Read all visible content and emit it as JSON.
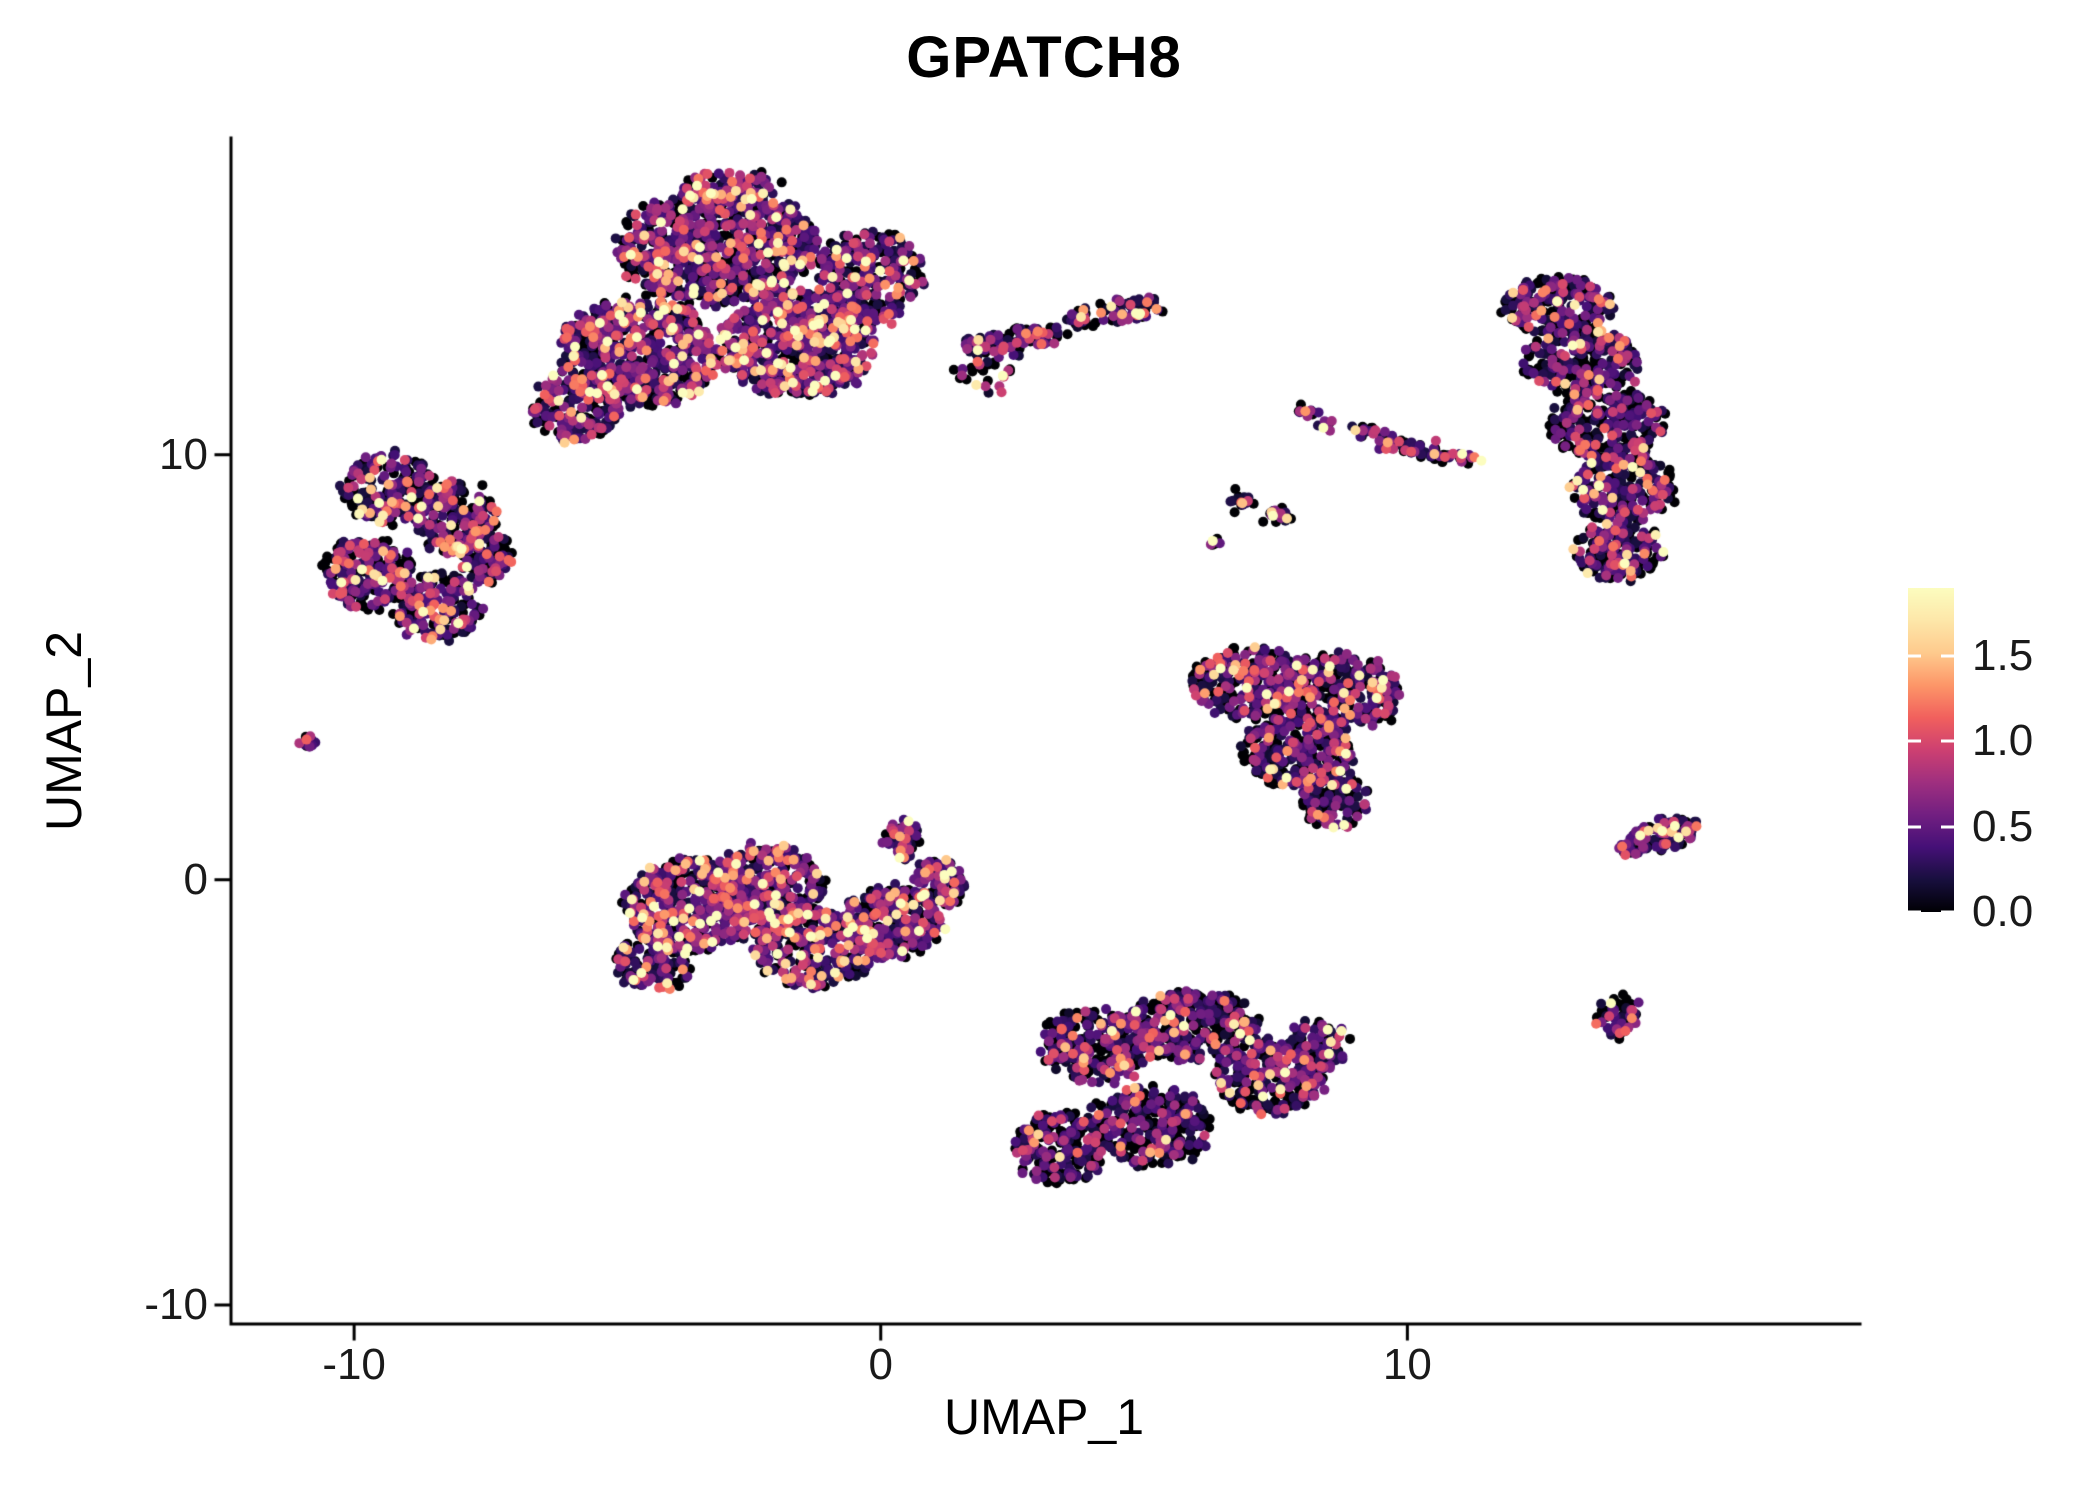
{
  "chart_data": {
    "type": "scatter",
    "title": "GPATCH8",
    "xlabel": "UMAP_1",
    "ylabel": "UMAP_2",
    "xlim": [
      -12.3,
      18.5
    ],
    "ylim": [
      -10.4,
      17.4
    ],
    "xticks": {
      "values": [
        -10,
        0,
        10
      ],
      "labels": [
        "-10",
        "0",
        "10"
      ]
    },
    "yticks": {
      "values": [
        -10,
        0,
        10
      ],
      "labels": [
        "-10",
        "0",
        "10"
      ]
    },
    "grid": false,
    "legend_position": "right",
    "point_radius_px": 5,
    "seed": 1337,
    "colorbar": {
      "limits": [
        0,
        1.9
      ],
      "ticks": [
        0.0,
        0.5,
        1.0,
        1.5
      ],
      "tick_labels": [
        "0.0",
        "0.5",
        "1.0",
        "1.5"
      ],
      "colormap": "magma",
      "stops": [
        {
          "t": 0.0,
          "color": "#000004"
        },
        {
          "t": 0.1,
          "color": "#180f3e"
        },
        {
          "t": 0.2,
          "color": "#451077"
        },
        {
          "t": 0.3,
          "color": "#721f81"
        },
        {
          "t": 0.4,
          "color": "#9f2f7f"
        },
        {
          "t": 0.5,
          "color": "#cd4071"
        },
        {
          "t": 0.6,
          "color": "#f1605d"
        },
        {
          "t": 0.7,
          "color": "#fd9668"
        },
        {
          "t": 0.8,
          "color": "#feca8d"
        },
        {
          "t": 0.9,
          "color": "#fde7a9"
        },
        {
          "t": 1.0,
          "color": "#fcfdbf"
        }
      ]
    },
    "clusters": [
      {
        "x": -3.1,
        "y": 14.9,
        "rx": 1.9,
        "ry": 1.35,
        "n": 820,
        "z": 0.26,
        "s": 0.5
      },
      {
        "x": -2.8,
        "y": 16.2,
        "rx": 1.0,
        "ry": 0.5,
        "n": 100,
        "z": 0.26,
        "s": 0.5
      },
      {
        "x": -4.6,
        "y": 12.4,
        "rx": 1.5,
        "ry": 1.3,
        "n": 650,
        "z": 0.26,
        "s": 0.5
      },
      {
        "x": -1.6,
        "y": 12.6,
        "rx": 1.5,
        "ry": 1.25,
        "n": 650,
        "z": 0.26,
        "s": 0.52
      },
      {
        "x": -0.2,
        "y": 14.2,
        "rx": 1.05,
        "ry": 1.05,
        "n": 300,
        "z": 0.26,
        "s": 0.5
      },
      {
        "x": -5.8,
        "y": 11.1,
        "rx": 0.85,
        "ry": 0.8,
        "n": 180,
        "z": 0.3,
        "s": 0.48
      },
      {
        "x": 2.6,
        "y": 12.7,
        "rx": 1.05,
        "ry": 0.28,
        "n": 90,
        "a": 10,
        "z": 0.3,
        "s": 0.5
      },
      {
        "x": 4.5,
        "y": 13.35,
        "rx": 0.95,
        "ry": 0.25,
        "n": 85,
        "a": 12,
        "z": 0.3,
        "s": 0.5
      },
      {
        "x": 2.0,
        "y": 11.9,
        "rx": 0.55,
        "ry": 0.5,
        "n": 28,
        "z": 0.3,
        "s": 0.45
      },
      {
        "x": -9.3,
        "y": 9.2,
        "rx": 0.9,
        "ry": 0.85,
        "n": 230,
        "z": 0.34,
        "s": 0.48
      },
      {
        "x": -8.1,
        "y": 8.5,
        "rx": 0.78,
        "ry": 0.82,
        "n": 200,
        "z": 0.34,
        "s": 0.48
      },
      {
        "x": -9.7,
        "y": 7.2,
        "rx": 0.88,
        "ry": 0.82,
        "n": 220,
        "z": 0.34,
        "s": 0.48
      },
      {
        "x": -8.4,
        "y": 6.4,
        "rx": 0.82,
        "ry": 0.76,
        "n": 200,
        "z": 0.34,
        "s": 0.48
      },
      {
        "x": -7.5,
        "y": 7.6,
        "rx": 0.5,
        "ry": 0.62,
        "n": 100,
        "z": 0.34,
        "s": 0.48
      },
      {
        "x": -10.9,
        "y": 3.2,
        "rx": 0.17,
        "ry": 0.15,
        "n": 12,
        "z": 0.3,
        "s": 0.5
      },
      {
        "x": -3.6,
        "y": -0.6,
        "rx": 1.25,
        "ry": 1.1,
        "n": 450,
        "z": 0.3,
        "s": 0.52
      },
      {
        "x": -2.2,
        "y": -0.2,
        "rx": 1.1,
        "ry": 1.0,
        "n": 400,
        "z": 0.3,
        "s": 0.52
      },
      {
        "x": -1.2,
        "y": -1.6,
        "rx": 1.2,
        "ry": 0.9,
        "n": 350,
        "z": 0.3,
        "s": 0.52
      },
      {
        "x": 0.2,
        "y": -1.0,
        "rx": 1.0,
        "ry": 0.8,
        "n": 250,
        "z": 0.32,
        "s": 0.5
      },
      {
        "x": 1.1,
        "y": -0.1,
        "rx": 0.5,
        "ry": 0.6,
        "n": 100,
        "z": 0.32,
        "s": 0.5
      },
      {
        "x": 0.4,
        "y": 0.95,
        "rx": 0.35,
        "ry": 0.45,
        "n": 55,
        "z": 0.32,
        "s": 0.5
      },
      {
        "x": -4.3,
        "y": -1.9,
        "rx": 0.75,
        "ry": 0.7,
        "n": 150,
        "z": 0.3,
        "s": 0.52
      },
      {
        "x": 7.1,
        "y": 4.6,
        "rx": 1.25,
        "ry": 0.85,
        "n": 320,
        "z": 0.4,
        "s": 0.44
      },
      {
        "x": 8.8,
        "y": 4.4,
        "rx": 1.05,
        "ry": 0.9,
        "n": 300,
        "z": 0.4,
        "s": 0.44
      },
      {
        "x": 7.9,
        "y": 3.0,
        "rx": 1.05,
        "ry": 0.85,
        "n": 260,
        "z": 0.4,
        "s": 0.44
      },
      {
        "x": 8.6,
        "y": 1.9,
        "rx": 0.62,
        "ry": 0.7,
        "n": 130,
        "z": 0.4,
        "s": 0.44
      },
      {
        "x": 4.1,
        "y": -3.9,
        "rx": 1.05,
        "ry": 0.85,
        "n": 280,
        "z": 0.44,
        "s": 0.42
      },
      {
        "x": 5.9,
        "y": -3.4,
        "rx": 1.25,
        "ry": 0.8,
        "n": 320,
        "z": 0.4,
        "s": 0.44
      },
      {
        "x": 7.4,
        "y": -4.6,
        "rx": 1.05,
        "ry": 0.9,
        "n": 280,
        "z": 0.4,
        "s": 0.44
      },
      {
        "x": 5.1,
        "y": -5.8,
        "rx": 1.15,
        "ry": 0.9,
        "n": 300,
        "z": 0.46,
        "s": 0.42
      },
      {
        "x": 3.4,
        "y": -6.3,
        "rx": 0.85,
        "ry": 0.85,
        "n": 220,
        "z": 0.5,
        "s": 0.4
      },
      {
        "x": 8.3,
        "y": -3.9,
        "rx": 0.55,
        "ry": 0.6,
        "n": 90,
        "z": 0.4,
        "s": 0.44
      },
      {
        "x": 12.9,
        "y": 13.5,
        "rx": 1.05,
        "ry": 0.7,
        "n": 230,
        "z": 0.45,
        "s": 0.42
      },
      {
        "x": 13.3,
        "y": 12.2,
        "rx": 1.1,
        "ry": 0.75,
        "n": 260,
        "z": 0.45,
        "s": 0.42
      },
      {
        "x": 13.8,
        "y": 10.7,
        "rx": 1.1,
        "ry": 0.8,
        "n": 260,
        "z": 0.45,
        "s": 0.42
      },
      {
        "x": 14.1,
        "y": 9.2,
        "rx": 1.0,
        "ry": 0.8,
        "n": 240,
        "z": 0.45,
        "s": 0.42
      },
      {
        "x": 14.0,
        "y": 7.7,
        "rx": 0.85,
        "ry": 0.7,
        "n": 180,
        "z": 0.45,
        "s": 0.42
      },
      {
        "x": 8.1,
        "y": 11.0,
        "rx": 0.19,
        "ry": 0.15,
        "n": 12,
        "z": 0.3,
        "s": 0.5
      },
      {
        "x": 8.45,
        "y": 10.7,
        "rx": 0.15,
        "ry": 0.12,
        "n": 9,
        "z": 0.3,
        "s": 0.5
      },
      {
        "x": 10.4,
        "y": 10.1,
        "rx": 1.05,
        "ry": 0.17,
        "n": 70,
        "a": -12,
        "z": 0.3,
        "s": 0.5
      },
      {
        "x": 9.3,
        "y": 10.5,
        "rx": 0.32,
        "ry": 0.13,
        "n": 18,
        "a": -15,
        "z": 0.3,
        "s": 0.5
      },
      {
        "x": 6.8,
        "y": 8.9,
        "rx": 0.24,
        "ry": 0.17,
        "n": 16,
        "z": 0.3,
        "s": 0.5
      },
      {
        "x": 7.5,
        "y": 8.6,
        "rx": 0.3,
        "ry": 0.17,
        "n": 20,
        "a": -10,
        "z": 0.3,
        "s": 0.5
      },
      {
        "x": 6.35,
        "y": 7.95,
        "rx": 0.13,
        "ry": 0.11,
        "n": 7,
        "z": 0.3,
        "s": 0.5
      },
      {
        "x": 14.8,
        "y": 1.0,
        "rx": 0.8,
        "ry": 0.32,
        "n": 140,
        "a": 25,
        "z": 0.35,
        "s": 0.46
      },
      {
        "x": 14.0,
        "y": -3.2,
        "rx": 0.42,
        "ry": 0.48,
        "n": 60,
        "z": 0.4,
        "s": 0.44
      }
    ]
  }
}
